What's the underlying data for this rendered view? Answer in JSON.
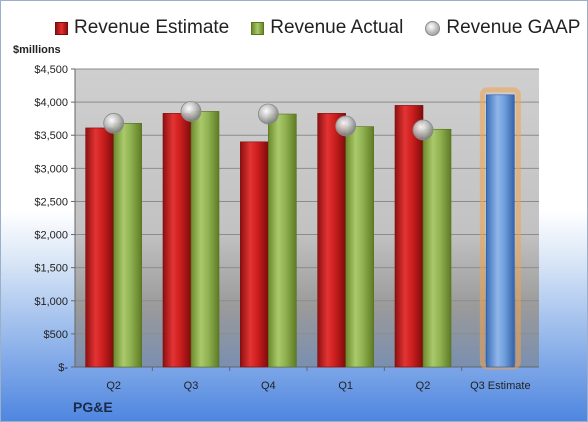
{
  "legend": {
    "estimate": "Revenue Estimate",
    "actual": "Revenue Actual",
    "gaap": "Revenue GAAP"
  },
  "unit_label": "$millions",
  "company": "PG&E",
  "colors": {
    "estimate": "#d42222",
    "actual": "#8cae4a",
    "gaap": "#b5b5b5",
    "forecast": "#6f9fdc",
    "forecast_glow": "#f2a24a",
    "plot_bg": "#c9c9c9"
  },
  "chart_data": {
    "type": "bar",
    "title": "",
    "xlabel": "",
    "ylabel": "$millions",
    "ylim": [
      0,
      4500
    ],
    "grid": true,
    "legend_position": "top",
    "y_ticks": [
      "$-",
      "$500",
      "$1,000",
      "$1,500",
      "$2,000",
      "$2,500",
      "$3,000",
      "$3,500",
      "$4,000",
      "$4,500"
    ],
    "y_tick_values": [
      0,
      500,
      1000,
      1500,
      2000,
      2500,
      3000,
      3500,
      4000,
      4500
    ],
    "categories": [
      "Q2",
      "Q3",
      "Q4",
      "Q1",
      "Q2",
      "Q3 Estimate"
    ],
    "series": [
      {
        "name": "Revenue Estimate",
        "type": "bar",
        "values": [
          3610,
          3830,
          3400,
          3830,
          3950,
          null
        ]
      },
      {
        "name": "Revenue Actual",
        "type": "bar",
        "values": [
          3680,
          3860,
          3820,
          3630,
          3590,
          null
        ]
      },
      {
        "name": "Revenue GAAP",
        "type": "marker",
        "values": [
          3680,
          3860,
          3820,
          3640,
          3580,
          null
        ]
      },
      {
        "name": "Q3 Estimate",
        "type": "bar",
        "values": [
          null,
          null,
          null,
          null,
          null,
          4110
        ]
      }
    ]
  }
}
